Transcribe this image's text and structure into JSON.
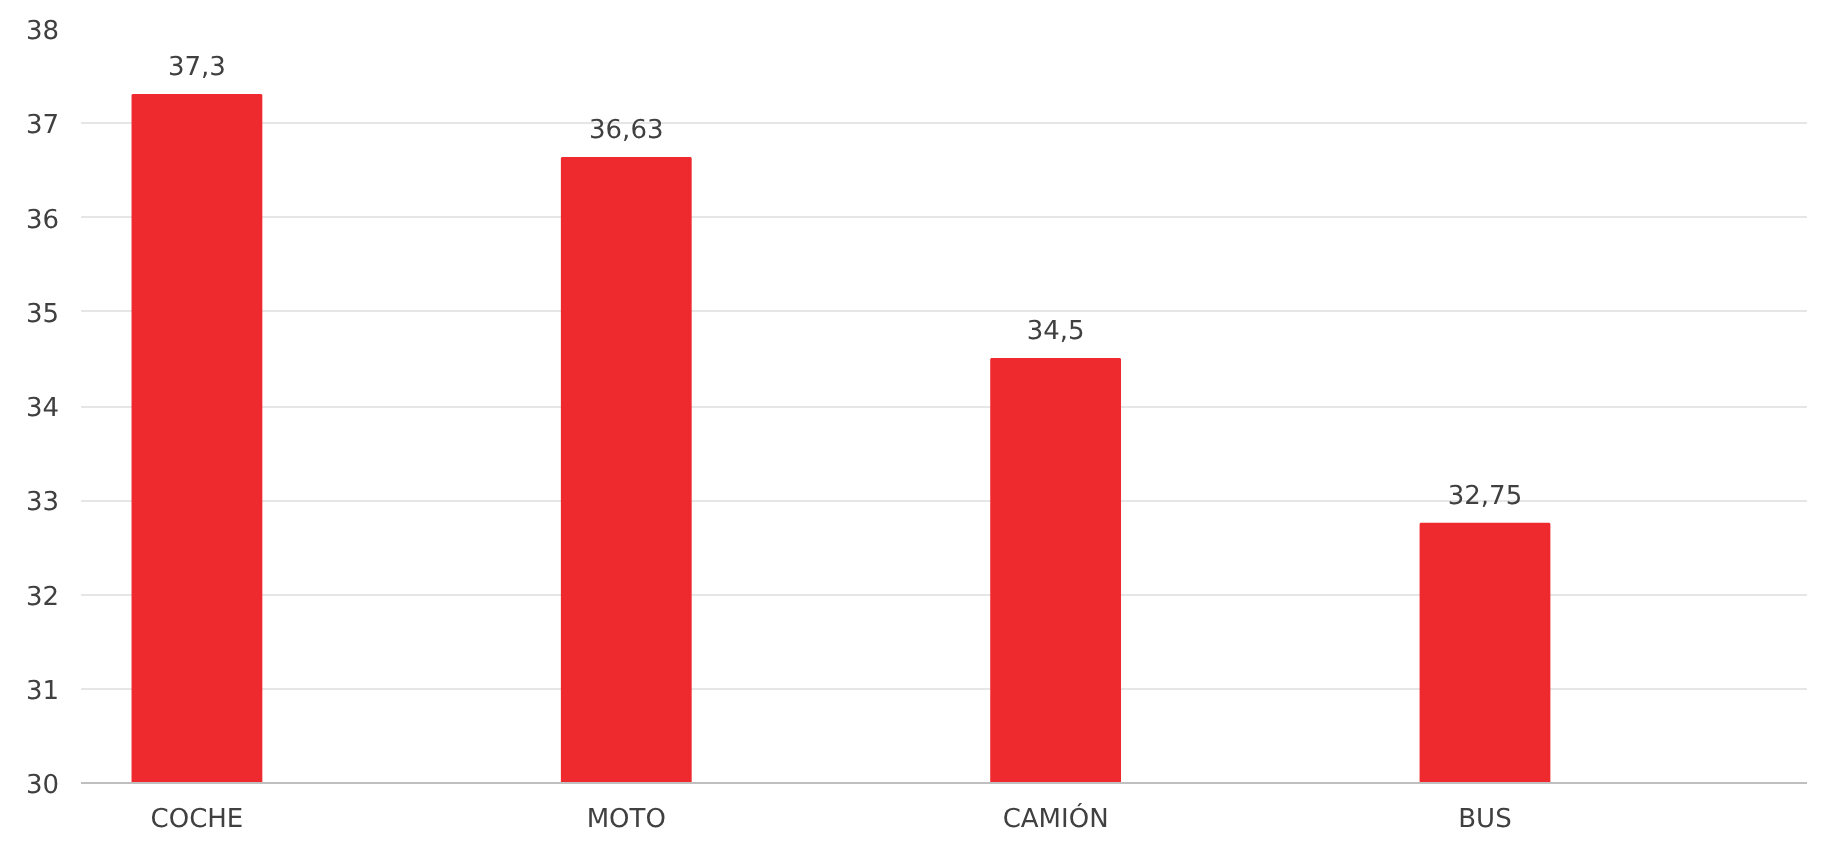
{
  "chart_data": {
    "type": "bar",
    "categories": [
      "COCHE",
      "MOTO",
      "CAMIÓN",
      "BUS"
    ],
    "values": [
      37.3,
      36.63,
      34.5,
      32.75
    ],
    "value_labels": [
      "37,3",
      "36,63",
      "34,5",
      "32,75"
    ],
    "color": "#ee2a2e",
    "ylim": [
      30,
      38
    ],
    "yticks": [
      30,
      31,
      32,
      33,
      34,
      35,
      36,
      37,
      38
    ],
    "grid": "y"
  }
}
